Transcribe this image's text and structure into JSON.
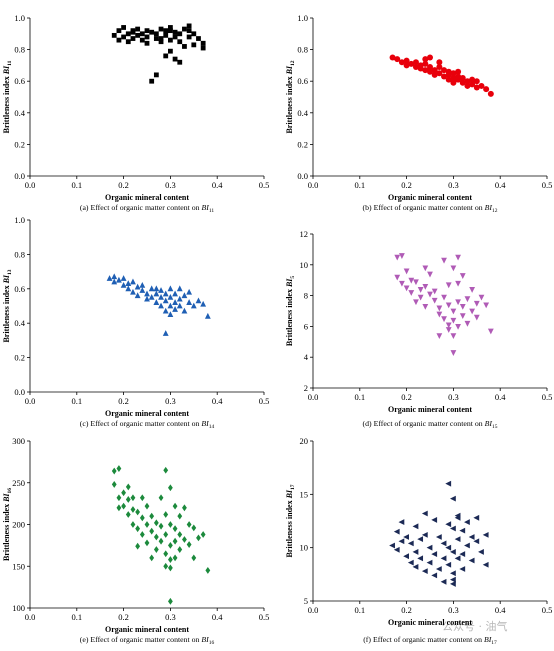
{
  "watermark": "公众号 · 油气",
  "chart_data": [
    {
      "id": "a",
      "type": "scatter",
      "marker": "square",
      "color": "#000000",
      "xlabel": "Organic mineral content",
      "ylabel": "Brittleness index BI",
      "ylabel_sub": "11",
      "caption": "(a) Effect of organic matter content on BI",
      "caption_sub": "11",
      "xlim": [
        0,
        0.5
      ],
      "ylim": [
        0,
        1.0
      ],
      "xticks": [
        "0.0",
        "0.1",
        "0.2",
        "0.3",
        "0.4",
        "0.5"
      ],
      "yticks": [
        "0.0",
        "0.2",
        "0.4",
        "0.6",
        "0.8",
        "1.0"
      ],
      "points": [
        [
          0.18,
          0.89
        ],
        [
          0.19,
          0.92
        ],
        [
          0.19,
          0.86
        ],
        [
          0.2,
          0.94
        ],
        [
          0.2,
          0.88
        ],
        [
          0.21,
          0.9
        ],
        [
          0.21,
          0.85
        ],
        [
          0.22,
          0.92
        ],
        [
          0.22,
          0.87
        ],
        [
          0.23,
          0.89
        ],
        [
          0.23,
          0.93
        ],
        [
          0.24,
          0.86
        ],
        [
          0.24,
          0.9
        ],
        [
          0.25,
          0.88
        ],
        [
          0.25,
          0.84
        ],
        [
          0.26,
          0.91
        ],
        [
          0.27,
          0.87
        ],
        [
          0.27,
          0.9
        ],
        [
          0.28,
          0.93
        ],
        [
          0.28,
          0.85
        ],
        [
          0.29,
          0.89
        ],
        [
          0.29,
          0.92
        ],
        [
          0.3,
          0.86
        ],
        [
          0.3,
          0.94
        ],
        [
          0.3,
          0.79
        ],
        [
          0.31,
          0.88
        ],
        [
          0.31,
          0.91
        ],
        [
          0.31,
          0.74
        ],
        [
          0.32,
          0.85
        ],
        [
          0.32,
          0.9
        ],
        [
          0.33,
          0.93
        ],
        [
          0.33,
          0.82
        ],
        [
          0.34,
          0.88
        ],
        [
          0.34,
          0.95
        ],
        [
          0.35,
          0.83
        ],
        [
          0.35,
          0.9
        ],
        [
          0.36,
          0.87
        ],
        [
          0.37,
          0.84
        ],
        [
          0.37,
          0.81
        ],
        [
          0.26,
          0.6
        ],
        [
          0.27,
          0.64
        ],
        [
          0.29,
          0.76
        ],
        [
          0.32,
          0.72
        ],
        [
          0.34,
          0.92
        ],
        [
          0.22,
          0.91
        ],
        [
          0.25,
          0.92
        ],
        [
          0.3,
          0.92
        ],
        [
          0.28,
          0.87
        ]
      ]
    },
    {
      "id": "b",
      "type": "scatter",
      "marker": "circle",
      "color": "#e8000b",
      "xlabel": "Organic mineral content",
      "ylabel": "Brittleness index BI",
      "ylabel_sub": "12",
      "caption": "(b) Effect of organic matter content on BI",
      "caption_sub": "12",
      "xlim": [
        0,
        0.5
      ],
      "ylim": [
        0,
        1.0
      ],
      "xticks": [
        "0.0",
        "0.1",
        "0.2",
        "0.3",
        "0.4",
        "0.5"
      ],
      "yticks": [
        "0.0",
        "0.2",
        "0.4",
        "0.6",
        "0.8",
        "1.0"
      ],
      "points": [
        [
          0.17,
          0.75
        ],
        [
          0.18,
          0.74
        ],
        [
          0.19,
          0.72
        ],
        [
          0.2,
          0.73
        ],
        [
          0.2,
          0.7
        ],
        [
          0.21,
          0.71
        ],
        [
          0.22,
          0.69
        ],
        [
          0.22,
          0.72
        ],
        [
          0.23,
          0.68
        ],
        [
          0.23,
          0.7
        ],
        [
          0.24,
          0.67
        ],
        [
          0.24,
          0.71
        ],
        [
          0.25,
          0.66
        ],
        [
          0.25,
          0.69
        ],
        [
          0.25,
          0.75
        ],
        [
          0.26,
          0.67
        ],
        [
          0.26,
          0.64
        ],
        [
          0.27,
          0.69
        ],
        [
          0.27,
          0.65
        ],
        [
          0.28,
          0.63
        ],
        [
          0.28,
          0.67
        ],
        [
          0.29,
          0.64
        ],
        [
          0.29,
          0.61
        ],
        [
          0.29,
          0.66
        ],
        [
          0.3,
          0.62
        ],
        [
          0.3,
          0.6
        ],
        [
          0.3,
          0.65
        ],
        [
          0.31,
          0.61
        ],
        [
          0.31,
          0.63
        ],
        [
          0.32,
          0.59
        ],
        [
          0.32,
          0.62
        ],
        [
          0.33,
          0.6
        ],
        [
          0.33,
          0.57
        ],
        [
          0.34,
          0.58
        ],
        [
          0.35,
          0.56
        ],
        [
          0.35,
          0.6
        ],
        [
          0.36,
          0.57
        ],
        [
          0.37,
          0.55
        ],
        [
          0.38,
          0.52
        ],
        [
          0.24,
          0.74
        ],
        [
          0.27,
          0.72
        ],
        [
          0.31,
          0.66
        ],
        [
          0.34,
          0.61
        ],
        [
          0.3,
          0.59
        ]
      ]
    },
    {
      "id": "c",
      "type": "scatter",
      "marker": "triangle-up",
      "color": "#1f5fb4",
      "xlabel": "Organic mineral content",
      "ylabel": "Brittleness index BI",
      "ylabel_sub": "13",
      "caption": "(c)    Effect of organic matter content on BI",
      "caption_sub": "14",
      "xlim": [
        0,
        0.5
      ],
      "ylim": [
        0,
        1.0
      ],
      "xticks": [
        "0.0",
        "0.1",
        "0.2",
        "0.3",
        "0.4",
        "0.5"
      ],
      "yticks": [
        "0.0",
        "0.2",
        "0.4",
        "0.6",
        "0.8",
        "1.0"
      ],
      "points": [
        [
          0.17,
          0.66
        ],
        [
          0.18,
          0.67
        ],
        [
          0.18,
          0.64
        ],
        [
          0.19,
          0.65
        ],
        [
          0.2,
          0.62
        ],
        [
          0.2,
          0.66
        ],
        [
          0.21,
          0.63
        ],
        [
          0.21,
          0.6
        ],
        [
          0.22,
          0.64
        ],
        [
          0.22,
          0.58
        ],
        [
          0.23,
          0.61
        ],
        [
          0.23,
          0.56
        ],
        [
          0.24,
          0.59
        ],
        [
          0.24,
          0.62
        ],
        [
          0.25,
          0.57
        ],
        [
          0.25,
          0.54
        ],
        [
          0.26,
          0.6
        ],
        [
          0.26,
          0.55
        ],
        [
          0.27,
          0.57
        ],
        [
          0.27,
          0.52
        ],
        [
          0.28,
          0.55
        ],
        [
          0.28,
          0.59
        ],
        [
          0.28,
          0.5
        ],
        [
          0.29,
          0.53
        ],
        [
          0.29,
          0.57
        ],
        [
          0.29,
          0.47
        ],
        [
          0.3,
          0.55
        ],
        [
          0.3,
          0.5
        ],
        [
          0.3,
          0.45
        ],
        [
          0.3,
          0.6
        ],
        [
          0.31,
          0.52
        ],
        [
          0.31,
          0.48
        ],
        [
          0.31,
          0.57
        ],
        [
          0.32,
          0.54
        ],
        [
          0.32,
          0.5
        ],
        [
          0.33,
          0.56
        ],
        [
          0.33,
          0.47
        ],
        [
          0.34,
          0.52
        ],
        [
          0.34,
          0.58
        ],
        [
          0.35,
          0.5
        ],
        [
          0.36,
          0.53
        ],
        [
          0.37,
          0.51
        ],
        [
          0.38,
          0.44
        ],
        [
          0.29,
          0.34
        ],
        [
          0.32,
          0.6
        ],
        [
          0.27,
          0.6
        ]
      ]
    },
    {
      "id": "d",
      "type": "scatter",
      "marker": "triangle-down",
      "color": "#b05bb6",
      "xlabel": "Organic mineral content",
      "ylabel": "Brittleness index BI",
      "ylabel_sub": "5",
      "caption": "(d) Effect of organic matter content on BI",
      "caption_sub": "15",
      "xlim": [
        0,
        0.5
      ],
      "ylim": [
        2,
        12
      ],
      "xticks": [
        "0.0",
        "0.1",
        "0.2",
        "0.3",
        "0.4",
        "0.5"
      ],
      "yticks": [
        "2",
        "4",
        "6",
        "8",
        "10",
        "12"
      ],
      "points": [
        [
          0.18,
          10.5
        ],
        [
          0.19,
          10.6
        ],
        [
          0.18,
          9.2
        ],
        [
          0.19,
          8.8
        ],
        [
          0.2,
          9.6
        ],
        [
          0.2,
          8.5
        ],
        [
          0.21,
          9.0
        ],
        [
          0.21,
          8.2
        ],
        [
          0.22,
          8.9
        ],
        [
          0.22,
          7.6
        ],
        [
          0.23,
          8.4
        ],
        [
          0.23,
          7.9
        ],
        [
          0.24,
          8.6
        ],
        [
          0.24,
          7.3
        ],
        [
          0.25,
          8.1
        ],
        [
          0.25,
          9.4
        ],
        [
          0.26,
          7.7
        ],
        [
          0.26,
          8.3
        ],
        [
          0.27,
          7.2
        ],
        [
          0.27,
          6.8
        ],
        [
          0.28,
          7.9
        ],
        [
          0.28,
          6.5
        ],
        [
          0.28,
          10.3
        ],
        [
          0.29,
          7.4
        ],
        [
          0.29,
          6.1
        ],
        [
          0.29,
          8.7
        ],
        [
          0.29,
          5.8
        ],
        [
          0.3,
          7.0
        ],
        [
          0.3,
          6.4
        ],
        [
          0.3,
          9.8
        ],
        [
          0.3,
          5.4
        ],
        [
          0.3,
          4.3
        ],
        [
          0.31,
          7.6
        ],
        [
          0.31,
          6.0
        ],
        [
          0.31,
          10.5
        ],
        [
          0.31,
          8.8
        ],
        [
          0.32,
          7.3
        ],
        [
          0.32,
          6.7
        ],
        [
          0.32,
          9.3
        ],
        [
          0.33,
          7.8
        ],
        [
          0.33,
          6.2
        ],
        [
          0.34,
          7.0
        ],
        [
          0.34,
          8.4
        ],
        [
          0.35,
          7.5
        ],
        [
          0.35,
          6.6
        ],
        [
          0.36,
          7.9
        ],
        [
          0.37,
          7.4
        ],
        [
          0.38,
          5.7
        ],
        [
          0.27,
          5.4
        ],
        [
          0.24,
          9.8
        ]
      ]
    },
    {
      "id": "e",
      "type": "scatter",
      "marker": "diamond",
      "color": "#1c8a3c",
      "xlabel": "Organic mineral content",
      "ylabel": "Brittleness index BI",
      "ylabel_sub": "16",
      "caption": "(e) Effect of organic matter content on BI",
      "caption_sub": "16",
      "xlim": [
        0,
        0.5
      ],
      "ylim": [
        100,
        300
      ],
      "xticks": [
        "0.0",
        "0.1",
        "0.2",
        "0.3",
        "0.4",
        "0.5"
      ],
      "yticks": [
        "100",
        "150",
        "200",
        "250",
        "300"
      ],
      "points": [
        [
          0.18,
          264
        ],
        [
          0.19,
          267
        ],
        [
          0.18,
          248
        ],
        [
          0.19,
          232
        ],
        [
          0.19,
          220
        ],
        [
          0.2,
          238
        ],
        [
          0.2,
          222
        ],
        [
          0.21,
          245
        ],
        [
          0.21,
          212
        ],
        [
          0.22,
          232
        ],
        [
          0.22,
          218
        ],
        [
          0.22,
          200
        ],
        [
          0.23,
          215
        ],
        [
          0.23,
          195
        ],
        [
          0.24,
          232
        ],
        [
          0.24,
          208
        ],
        [
          0.24,
          188
        ],
        [
          0.25,
          222
        ],
        [
          0.25,
          200
        ],
        [
          0.25,
          178
        ],
        [
          0.26,
          210
        ],
        [
          0.26,
          192
        ],
        [
          0.27,
          202
        ],
        [
          0.27,
          185
        ],
        [
          0.27,
          170
        ],
        [
          0.28,
          232
        ],
        [
          0.28,
          198
        ],
        [
          0.28,
          180
        ],
        [
          0.29,
          265
        ],
        [
          0.29,
          212
        ],
        [
          0.29,
          188
        ],
        [
          0.29,
          165
        ],
        [
          0.29,
          150
        ],
        [
          0.3,
          244
        ],
        [
          0.3,
          200
        ],
        [
          0.3,
          175
        ],
        [
          0.3,
          158
        ],
        [
          0.3,
          148
        ],
        [
          0.3,
          108
        ],
        [
          0.31,
          222
        ],
        [
          0.31,
          195
        ],
        [
          0.31,
          180
        ],
        [
          0.31,
          160
        ],
        [
          0.32,
          210
        ],
        [
          0.32,
          188
        ],
        [
          0.32,
          170
        ],
        [
          0.33,
          220
        ],
        [
          0.33,
          182
        ],
        [
          0.34,
          200
        ],
        [
          0.34,
          176
        ],
        [
          0.35,
          196
        ],
        [
          0.35,
          160
        ],
        [
          0.36,
          184
        ],
        [
          0.37,
          188
        ],
        [
          0.38,
          145
        ],
        [
          0.26,
          160
        ],
        [
          0.23,
          174
        ],
        [
          0.21,
          230
        ]
      ]
    },
    {
      "id": "f",
      "type": "scatter",
      "marker": "triangle-left",
      "color": "#1c2a55",
      "xlabel": "Organic mineral content",
      "ylabel": "Brittleness index BI",
      "ylabel_sub": "17",
      "caption": "(f) Effect of organic matter content on BI",
      "caption_sub": "17",
      "xlim": [
        0,
        0.5
      ],
      "ylim": [
        5,
        20
      ],
      "xticks": [
        "0.0",
        "0.1",
        "0.2",
        "0.3",
        "0.4",
        "0.5"
      ],
      "yticks": [
        "5",
        "10",
        "15",
        "20"
      ],
      "points": [
        [
          0.17,
          10.2
        ],
        [
          0.18,
          11.5
        ],
        [
          0.18,
          9.8
        ],
        [
          0.19,
          12.4
        ],
        [
          0.19,
          10.6
        ],
        [
          0.2,
          11.0
        ],
        [
          0.2,
          9.2
        ],
        [
          0.21,
          10.4
        ],
        [
          0.21,
          8.6
        ],
        [
          0.22,
          12.0
        ],
        [
          0.22,
          9.6
        ],
        [
          0.22,
          8.2
        ],
        [
          0.23,
          10.8
        ],
        [
          0.23,
          9.0
        ],
        [
          0.24,
          13.2
        ],
        [
          0.24,
          11.2
        ],
        [
          0.24,
          7.8
        ],
        [
          0.25,
          10.0
        ],
        [
          0.25,
          8.6
        ],
        [
          0.26,
          12.6
        ],
        [
          0.26,
          9.4
        ],
        [
          0.26,
          7.4
        ],
        [
          0.27,
          11.0
        ],
        [
          0.27,
          8.0
        ],
        [
          0.28,
          10.4
        ],
        [
          0.28,
          9.0
        ],
        [
          0.28,
          6.8
        ],
        [
          0.29,
          16.0
        ],
        [
          0.29,
          12.2
        ],
        [
          0.29,
          10.0
        ],
        [
          0.29,
          8.4
        ],
        [
          0.3,
          14.6
        ],
        [
          0.3,
          11.8
        ],
        [
          0.3,
          9.6
        ],
        [
          0.3,
          7.6
        ],
        [
          0.3,
          6.6
        ],
        [
          0.31,
          13.0
        ],
        [
          0.31,
          10.8
        ],
        [
          0.31,
          9.0
        ],
        [
          0.31,
          12.8
        ],
        [
          0.32,
          11.6
        ],
        [
          0.32,
          9.4
        ],
        [
          0.32,
          8.0
        ],
        [
          0.33,
          12.4
        ],
        [
          0.33,
          10.2
        ],
        [
          0.34,
          11.0
        ],
        [
          0.34,
          8.8
        ],
        [
          0.35,
          10.6
        ],
        [
          0.35,
          12.8
        ],
        [
          0.36,
          9.6
        ],
        [
          0.37,
          11.2
        ],
        [
          0.37,
          8.4
        ],
        [
          0.3,
          7.0
        ]
      ]
    }
  ]
}
